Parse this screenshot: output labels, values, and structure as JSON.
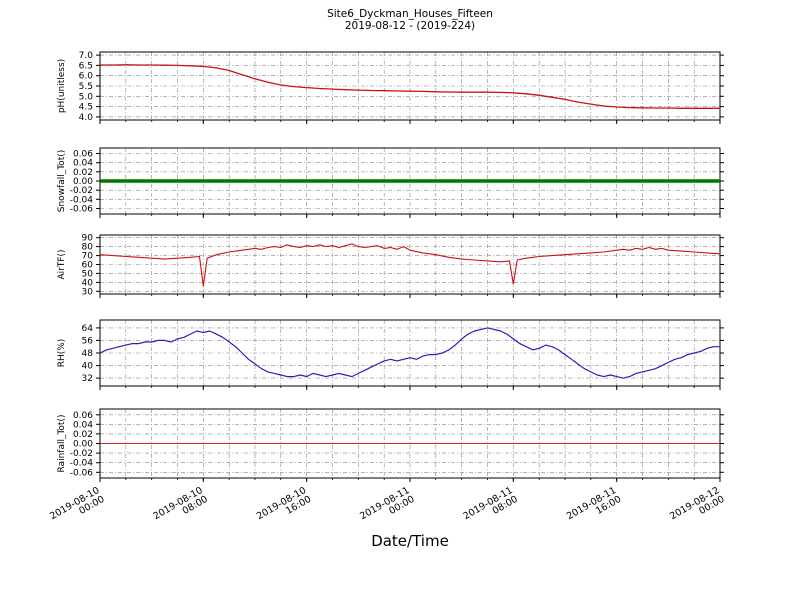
{
  "title": "Site6_Dyckman_Houses_Fifteen",
  "subtitle": "2019-08-12 - (2019-224)",
  "xlabel": "Date/Time",
  "x_axis": {
    "range_hours": [
      0,
      48
    ],
    "major_tick_hours": [
      0,
      8,
      16,
      24,
      32,
      40,
      48
    ],
    "minor_tick_step_hours": 2,
    "tick_labels": [
      [
        "2019-08-10",
        "00:00"
      ],
      [
        "2019-08-10",
        "08:00"
      ],
      [
        "2019-08-10",
        "16:00"
      ],
      [
        "2019-08-11",
        "00:00"
      ],
      [
        "2019-08-11",
        "08:00"
      ],
      [
        "2019-08-11",
        "16:00"
      ],
      [
        "2019-08-12",
        "00:00"
      ]
    ]
  },
  "chart_data": [
    {
      "type": "line",
      "name": "pH",
      "ylabel": "pH(unitless)",
      "color": "#cc1111",
      "line_width": 1.3,
      "ylim": [
        3.85,
        7.15
      ],
      "yticks": [
        7.0,
        6.5,
        6.0,
        5.5,
        5.0,
        4.5,
        4.0
      ],
      "ytick_labels": [
        "7.0",
        "6.5",
        "6.0",
        "5.5",
        "5.0",
        "4.5",
        "4.0"
      ],
      "x_start": 0,
      "x_step": 1,
      "values": [
        6.52,
        6.52,
        6.53,
        6.52,
        6.52,
        6.51,
        6.5,
        6.48,
        6.45,
        6.38,
        6.25,
        6.05,
        5.85,
        5.68,
        5.55,
        5.47,
        5.42,
        5.38,
        5.35,
        5.32,
        5.3,
        5.28,
        5.27,
        5.26,
        5.25,
        5.24,
        5.22,
        5.21,
        5.2,
        5.2,
        5.2,
        5.19,
        5.17,
        5.12,
        5.05,
        4.95,
        4.85,
        4.72,
        4.62,
        4.53,
        4.48,
        4.45,
        4.44,
        4.43,
        4.43,
        4.42,
        4.42,
        4.42,
        4.42
      ]
    },
    {
      "type": "line",
      "name": "Snowfall_Tot",
      "ylabel": "Snowfall_Tot()",
      "color": "#007700",
      "line_width": 3.5,
      "ylim": [
        -0.072,
        0.072
      ],
      "yticks": [
        0.06,
        0.04,
        0.02,
        0.0,
        -0.02,
        -0.04,
        -0.06
      ],
      "ytick_labels": [
        "0.06",
        "0.04",
        "0.02",
        "0.00",
        "-0.02",
        "-0.04",
        "-0.06"
      ],
      "x": [
        0,
        48
      ],
      "values": [
        0,
        0
      ]
    },
    {
      "type": "line",
      "name": "AirTF",
      "ylabel": "AirTF()",
      "color": "#cc1111",
      "line_width": 1.1,
      "ylim": [
        27,
        93
      ],
      "yticks": [
        90,
        80,
        70,
        60,
        50,
        40,
        30
      ],
      "ytick_labels": [
        "90",
        "80",
        "70",
        "60",
        "50",
        "40",
        "30"
      ],
      "x": [
        0,
        1,
        2,
        3,
        4,
        5,
        6,
        7,
        7.7,
        8,
        8.3,
        9,
        10,
        11,
        12,
        12.5,
        13,
        13.5,
        14,
        14.5,
        15,
        15.5,
        16,
        16.5,
        17,
        17.5,
        18,
        18.5,
        19,
        19.5,
        20,
        20.5,
        21,
        21.5,
        22,
        22.5,
        23,
        23.5,
        24,
        25,
        26,
        27,
        28,
        29,
        30,
        31,
        31.7,
        32,
        32.3,
        33,
        34,
        35,
        36,
        37,
        38,
        39,
        40,
        40.5,
        41,
        41.5,
        42,
        42.5,
        43,
        43.5,
        44,
        45,
        46,
        47,
        48
      ],
      "values": [
        71,
        70,
        69,
        68,
        67,
        66,
        67,
        68,
        69,
        36,
        67,
        71,
        74,
        76,
        78,
        77,
        79,
        80,
        79,
        82,
        80,
        79,
        81,
        80,
        82,
        80,
        81,
        79,
        81,
        83,
        80,
        79,
        80,
        81,
        78,
        79,
        77,
        80,
        76,
        73,
        71,
        68,
        66,
        65,
        64,
        63,
        64,
        38,
        65,
        67,
        69,
        70,
        71,
        72,
        73,
        74,
        76,
        77,
        76,
        78,
        77,
        79,
        77,
        78,
        76,
        75,
        74,
        73,
        72
      ]
    },
    {
      "type": "line",
      "name": "RH",
      "ylabel": "RH(%)",
      "color": "#2222bb",
      "line_width": 1.2,
      "ylim": [
        27,
        69
      ],
      "yticks": [
        64,
        56,
        48,
        40,
        32
      ],
      "ytick_labels": [
        "64",
        "56",
        "48",
        "40",
        "32"
      ],
      "x_start": 0,
      "x_step": 0.5,
      "values": [
        48,
        50,
        51,
        52,
        53,
        54,
        54,
        55,
        55,
        56,
        56,
        55,
        57,
        58,
        60,
        62,
        61,
        62,
        60,
        58,
        55,
        52,
        48,
        44,
        41,
        38,
        36,
        35,
        34,
        33,
        33,
        34,
        33,
        35,
        34,
        33,
        34,
        35,
        34,
        33,
        35,
        37,
        39,
        41,
        43,
        44,
        43,
        44,
        45,
        44,
        46,
        47,
        47,
        48,
        50,
        53,
        57,
        60,
        62,
        63,
        64,
        63,
        62,
        60,
        57,
        54,
        52,
        50,
        51,
        53,
        52,
        50,
        47,
        44,
        41,
        38,
        36,
        34,
        33,
        34,
        33,
        32,
        33,
        35,
        36,
        37,
        38,
        40,
        42,
        44,
        45,
        47,
        48,
        49,
        51,
        52,
        52
      ]
    },
    {
      "type": "line",
      "name": "Rainfall_Tot",
      "ylabel": "Rainfall_Tot()",
      "color": "#dd2222",
      "line_width": 1.0,
      "ylim": [
        -0.072,
        0.072
      ],
      "yticks": [
        0.06,
        0.04,
        0.02,
        0.0,
        -0.02,
        -0.04,
        -0.06
      ],
      "ytick_labels": [
        "0.06",
        "0.04",
        "0.02",
        "0.00",
        "-0.02",
        "-0.04",
        "-0.06"
      ],
      "x": [
        0,
        48
      ],
      "values": [
        0,
        0
      ]
    }
  ]
}
